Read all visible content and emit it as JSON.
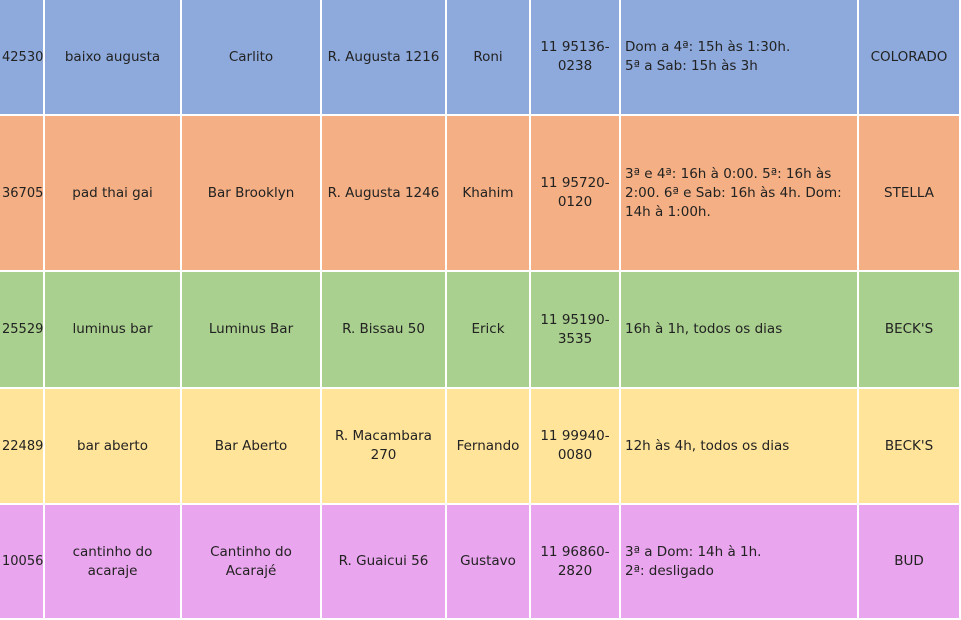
{
  "table": {
    "rows": [
      [
        "42530",
        "baixo augusta",
        "Carlito",
        "R. Augusta 1216",
        "Roni",
        "11 95136-0238",
        "Dom a 4ª: 15h às 1:30h.\n5ª a Sab: 15h às 3h",
        "COLORADO"
      ],
      [
        "36705",
        "pad thai gai",
        "Bar Brooklyn",
        "R. Augusta 1246",
        "Khahim",
        "11 95720-0120",
        "3ª e 4ª: 16h à 0:00. 5ª: 16h às 2:00. 6ª e Sab: 16h às 4h. Dom: 14h à 1:00h.",
        "STELLA"
      ],
      [
        "25529",
        "luminus bar",
        "Luminus Bar",
        "R. Bissau 50",
        "Erick",
        "11 95190-3535",
        "16h à 1h, todos os dias",
        "BECK'S"
      ],
      [
        "22489",
        "bar aberto",
        "Bar Aberto",
        "R. Macambara 270",
        "Fernando",
        "11 99940-0080",
        "12h às 4h, todos os dias",
        "BECK'S"
      ],
      [
        "10056",
        "cantinho do acaraje",
        "Cantinho do Acarajé",
        "R. Guaicui 56",
        "Gustavo",
        "11 96860-2820",
        "3ª a Dom: 14h à 1h.\n2ª: desligado",
        "BUD"
      ]
    ]
  }
}
